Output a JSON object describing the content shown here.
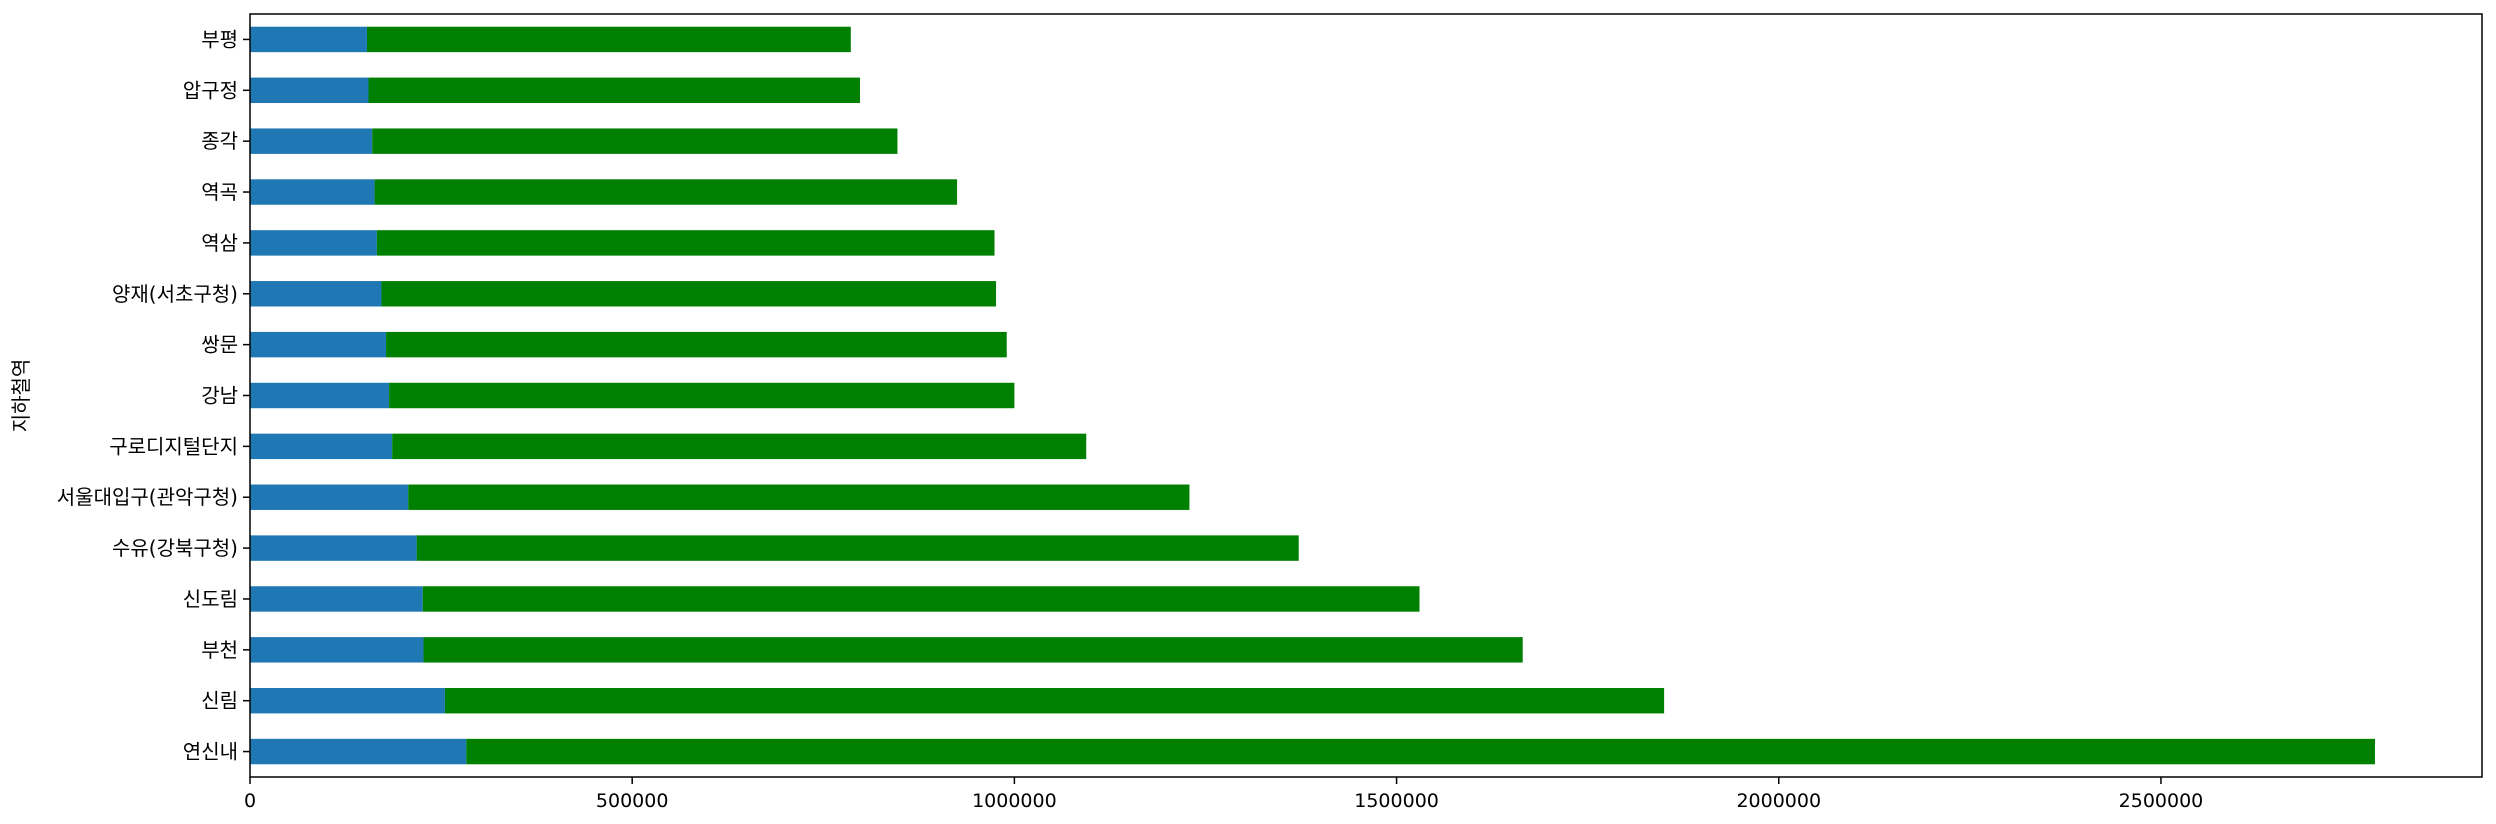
{
  "chart_data": {
    "type": "bar",
    "orientation": "horizontal",
    "stacked": true,
    "ylabel": "지하철역",
    "xlabel": "",
    "xlim": [
      0,
      2920000
    ],
    "xticks": [
      0,
      500000,
      1000000,
      1500000,
      2000000,
      2500000
    ],
    "grid": false,
    "categories": [
      "연신내",
      "신림",
      "부천",
      "신도림",
      "수유(강북구청)",
      "서울대입구(관악구청)",
      "구로디지털단지",
      "강남",
      "쌍문",
      "양재(서초구청)",
      "역삼",
      "역곡",
      "종각",
      "압구정",
      "부평"
    ],
    "series": [
      {
        "color": "#1f77b4",
        "values": [
          283000,
          255000,
          227000,
          226000,
          218000,
          207000,
          186000,
          182000,
          178000,
          172000,
          166000,
          163000,
          160000,
          155000,
          153000
        ]
      },
      {
        "color": "#008000",
        "values": [
          2497000,
          1595000,
          1438000,
          1304000,
          1154000,
          1022000,
          908000,
          818000,
          812000,
          804000,
          808000,
          762000,
          687000,
          643000,
          633000
        ]
      }
    ]
  }
}
